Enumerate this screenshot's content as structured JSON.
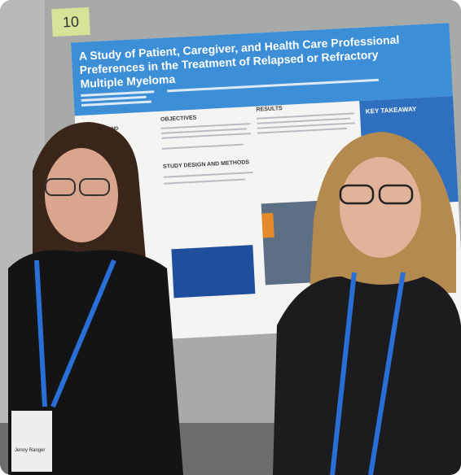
{
  "board_number": "10",
  "poster": {
    "title_lines": [
      "A Study of Patient, Caregiver, and Health Care Professional",
      "Preferences in the Treatment of Relapsed or Refractory",
      "Multiple Myeloma"
    ],
    "sections": {
      "background": "BACKGROUND",
      "objectives": "OBJECTIVES",
      "methods": "STUDY DESIGN AND METHODS",
      "results": "RESULTS",
      "takeaway": "KEY TAKEAWAY"
    }
  },
  "badge": {
    "name": "Jenny Ranger"
  }
}
